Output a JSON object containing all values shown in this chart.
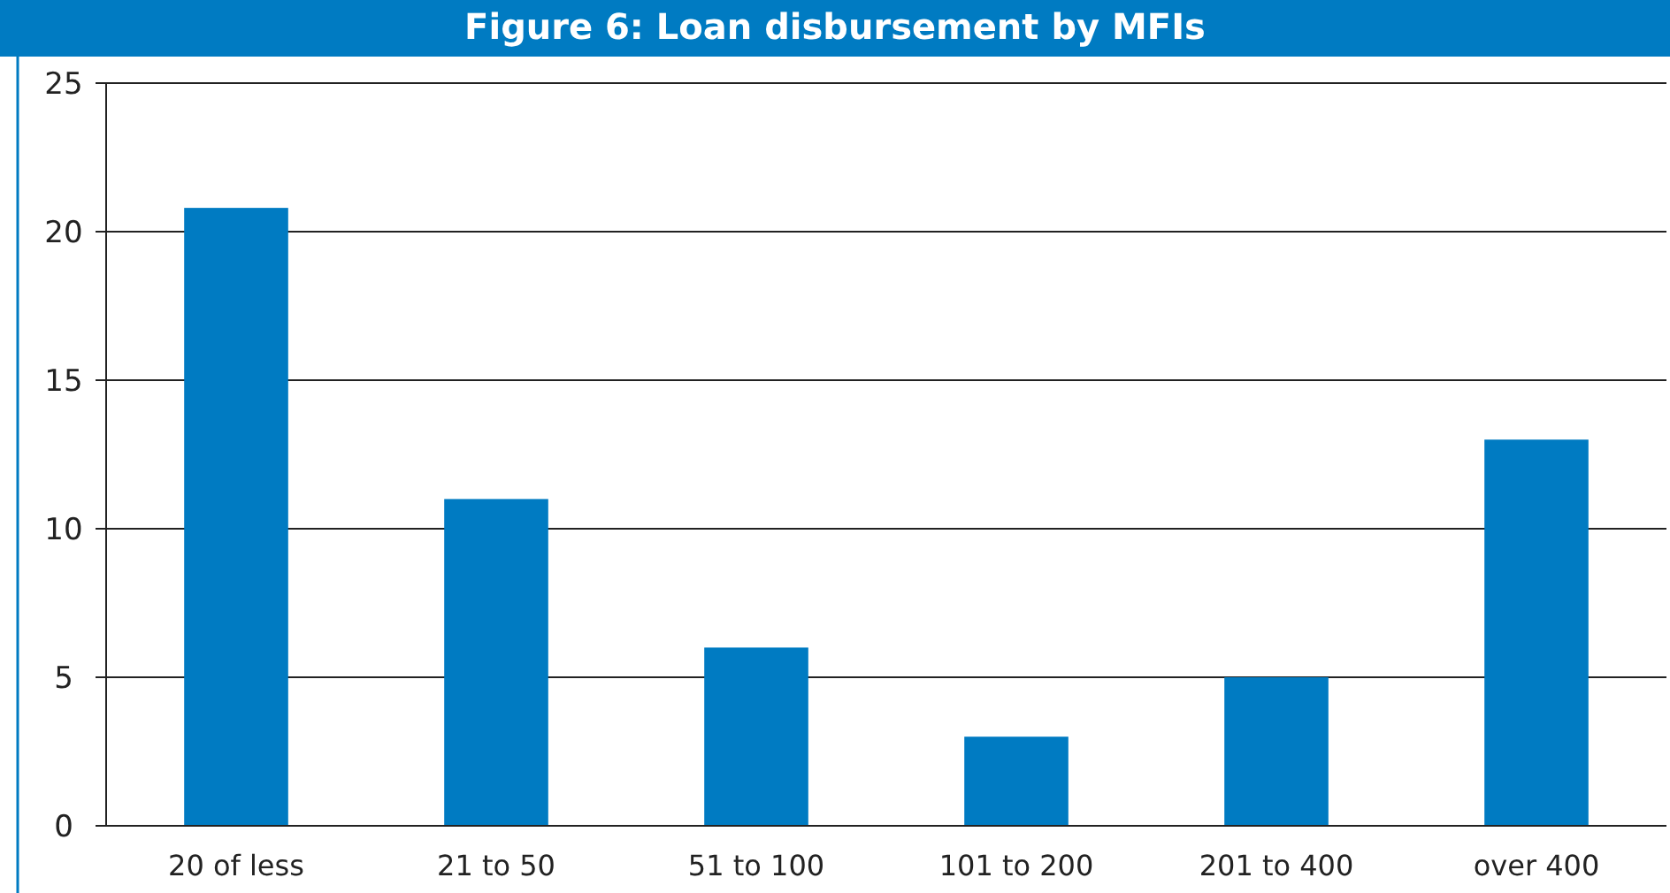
{
  "chart_data": {
    "type": "bar",
    "title": "Figure 6: Loan disbursement by MFIs",
    "categories": [
      "20 of less",
      "21 to 50",
      "51 to 100",
      "101 to 200",
      "201 to 400",
      "over 400"
    ],
    "values": [
      20.8,
      11,
      6,
      3,
      5,
      13
    ],
    "color": "#007bc2",
    "ylim": [
      0,
      25
    ],
    "yticks": [
      0,
      5,
      10,
      15,
      20,
      25
    ],
    "grid": "y"
  }
}
